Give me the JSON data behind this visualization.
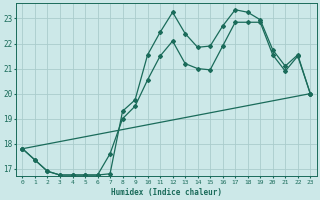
{
  "title": "",
  "xlabel": "Humidex (Indice chaleur)",
  "ylabel": "",
  "xlim": [
    -0.5,
    23.5
  ],
  "ylim": [
    16.7,
    23.6
  ],
  "yticks": [
    17,
    18,
    19,
    20,
    21,
    22,
    23
  ],
  "xticks": [
    0,
    1,
    2,
    3,
    4,
    5,
    6,
    7,
    8,
    9,
    10,
    11,
    12,
    13,
    14,
    15,
    16,
    17,
    18,
    19,
    20,
    21,
    22,
    23
  ],
  "bg_color": "#cce8e8",
  "grid_color": "#aacccc",
  "line_color": "#1a6b5a",
  "series1_x": [
    0,
    1,
    2,
    3,
    4,
    5,
    6,
    7,
    8,
    9,
    10,
    11,
    12,
    13,
    14,
    15,
    16,
    17,
    18,
    19,
    20,
    21,
    22,
    23
  ],
  "series1_y": [
    17.8,
    17.35,
    16.9,
    16.75,
    16.75,
    16.75,
    16.75,
    16.8,
    19.3,
    19.75,
    21.55,
    22.45,
    23.25,
    22.4,
    21.85,
    21.9,
    22.7,
    23.35,
    23.25,
    22.95,
    21.75,
    21.1,
    21.55,
    20.0
  ],
  "series2_x": [
    0,
    1,
    2,
    3,
    4,
    5,
    6,
    7,
    8,
    9,
    10,
    11,
    12,
    13,
    14,
    15,
    16,
    17,
    18,
    19,
    20,
    21,
    22,
    23
  ],
  "series2_y": [
    17.8,
    17.35,
    16.9,
    16.75,
    16.75,
    16.75,
    16.75,
    17.6,
    19.0,
    19.5,
    20.55,
    21.5,
    22.1,
    21.2,
    21.0,
    20.95,
    21.9,
    22.85,
    22.85,
    22.85,
    21.55,
    20.9,
    21.5,
    20.0
  ],
  "series3_x": [
    0,
    23
  ],
  "series3_y": [
    17.8,
    20.0
  ]
}
